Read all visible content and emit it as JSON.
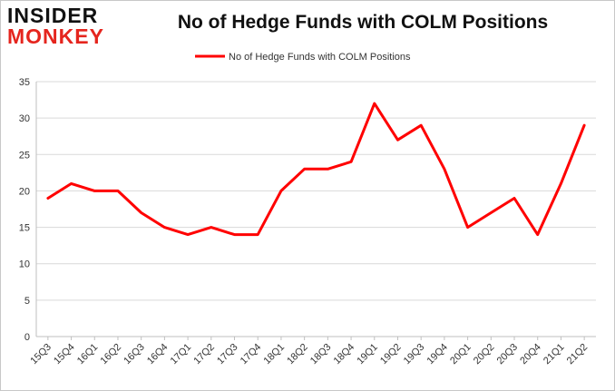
{
  "logo": {
    "line1": "INSIDER",
    "line2": "MONKEY"
  },
  "chart_data": {
    "type": "line",
    "title": "No of Hedge Funds with COLM Positions",
    "xlabel": "",
    "ylabel": "",
    "categories": [
      "15Q3",
      "15Q4",
      "16Q1",
      "16Q2",
      "16Q3",
      "16Q4",
      "17Q1",
      "17Q2",
      "17Q3",
      "17Q4",
      "18Q1",
      "18Q2",
      "18Q3",
      "18Q4",
      "19Q1",
      "19Q2",
      "19Q3",
      "19Q4",
      "20Q1",
      "20Q2",
      "20Q3",
      "20Q4",
      "21Q1",
      "21Q2"
    ],
    "series": [
      {
        "name": "No of Hedge Funds with COLM Positions",
        "color": "#ff0000",
        "values": [
          19,
          21,
          20,
          20,
          17,
          15,
          14,
          15,
          14,
          14,
          20,
          23,
          23,
          24,
          32,
          27,
          29,
          23,
          15,
          17,
          19,
          14,
          21,
          29
        ]
      }
    ],
    "ylim": [
      0,
      35
    ],
    "yticks": [
      0,
      5,
      10,
      15,
      20,
      25,
      30,
      35
    ],
    "grid": true,
    "legend": "top-center"
  }
}
